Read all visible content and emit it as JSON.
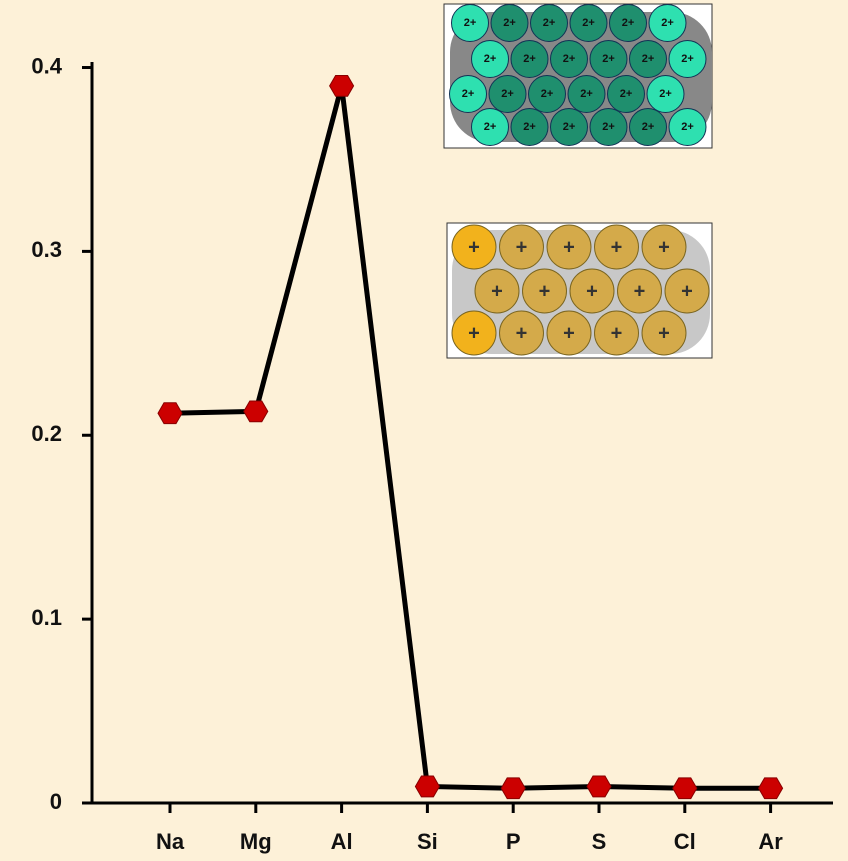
{
  "chart_data": {
    "type": "line",
    "categories": [
      "Na",
      "Mg",
      "Al",
      "Si",
      "P",
      "S",
      "Cl",
      "Ar"
    ],
    "values": [
      0.212,
      0.213,
      0.39,
      0.009,
      0.008,
      0.009,
      0.008,
      0.008
    ],
    "color": "#000000",
    "marker_color": "#cc0000",
    "ylim": [
      0,
      0.403
    ],
    "yticks": [
      0,
      0.1,
      0.2,
      0.3,
      0.4
    ],
    "inset_labels": [
      "2+",
      "+"
    ]
  }
}
